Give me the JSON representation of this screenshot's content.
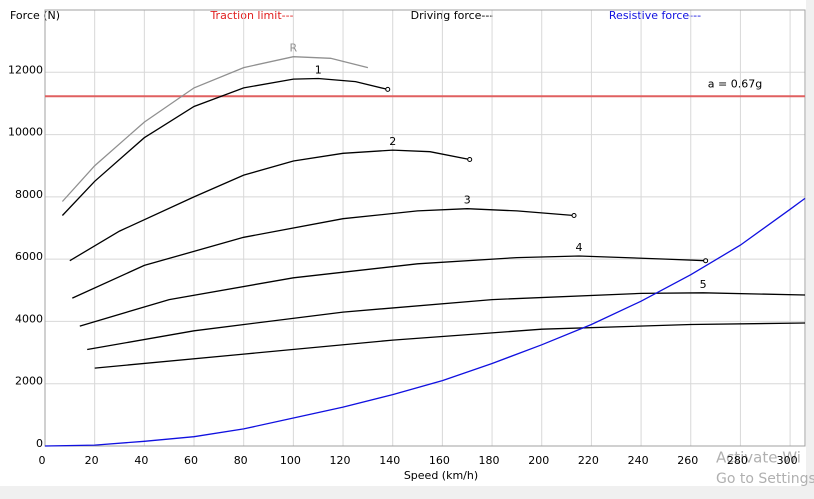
{
  "chart_data": {
    "type": "line",
    "ylabel": "Force (N)",
    "xlabel": "Speed (km/h)",
    "legend": [
      {
        "text": "Traction limit---",
        "color": "#e02020"
      },
      {
        "text": "Driving force---",
        "color": "#000000"
      },
      {
        "text": "Resistive force---",
        "color": "#1010e0"
      }
    ],
    "xlim": [
      0,
      306
    ],
    "ylim": [
      0,
      14000
    ],
    "xticks": [
      0,
      20,
      40,
      60,
      80,
      100,
      120,
      140,
      160,
      180,
      200,
      220,
      240,
      260,
      280,
      300
    ],
    "yticks": [
      0,
      2000,
      4000,
      6000,
      8000,
      10000,
      12000
    ],
    "grid": true,
    "reference_lines": [
      {
        "value": 11230,
        "label": "a = 0.67g",
        "color": "#e06060"
      }
    ],
    "series": [
      {
        "name": "R",
        "color": "#909090",
        "end_marker": false,
        "x": [
          7,
          20,
          40,
          60,
          80,
          100,
          115,
          130
        ],
        "values": [
          7850,
          9000,
          10400,
          11500,
          12150,
          12500,
          12450,
          12150
        ]
      },
      {
        "name": "1",
        "color": "#000000",
        "end_marker": true,
        "x": [
          7,
          20,
          40,
          60,
          80,
          100,
          110,
          125,
          138
        ],
        "values": [
          7400,
          8500,
          9900,
          10900,
          11500,
          11780,
          11800,
          11700,
          11450
        ]
      },
      {
        "name": "2",
        "color": "#000000",
        "end_marker": true,
        "x": [
          10,
          30,
          60,
          80,
          100,
          120,
          140,
          155,
          171
        ],
        "values": [
          5950,
          6900,
          8000,
          8700,
          9150,
          9400,
          9500,
          9450,
          9200
        ]
      },
      {
        "name": "3",
        "color": "#000000",
        "end_marker": true,
        "x": [
          11,
          40,
          80,
          120,
          150,
          170,
          190,
          213
        ],
        "values": [
          4750,
          5800,
          6700,
          7300,
          7550,
          7620,
          7550,
          7400
        ]
      },
      {
        "name": "4",
        "color": "#000000",
        "end_marker": true,
        "x": [
          14,
          50,
          100,
          150,
          190,
          215,
          250,
          266
        ],
        "values": [
          3850,
          4700,
          5400,
          5850,
          6050,
          6100,
          6000,
          5950
        ]
      },
      {
        "name": "5",
        "color": "#000000",
        "end_marker": false,
        "x": [
          17,
          60,
          120,
          180,
          240,
          265,
          306
        ],
        "values": [
          3100,
          3700,
          4300,
          4700,
          4900,
          4920,
          4850
        ]
      },
      {
        "color": "#000000",
        "end_marker": false,
        "x": [
          20,
          80,
          140,
          200,
          260,
          306
        ],
        "values": [
          2500,
          2950,
          3400,
          3750,
          3900,
          3950
        ]
      },
      {
        "color": "#1010e0",
        "end_marker": false,
        "x": [
          0,
          20,
          40,
          60,
          80,
          100,
          120,
          140,
          160,
          180,
          200,
          220,
          240,
          260,
          280,
          300,
          306
        ],
        "values": [
          0,
          30,
          150,
          300,
          550,
          900,
          1250,
          1650,
          2100,
          2650,
          3250,
          3900,
          4650,
          5500,
          6450,
          7600,
          7950
        ]
      }
    ]
  },
  "overlay": [
    "Activate Wi",
    "Go to Settings"
  ]
}
